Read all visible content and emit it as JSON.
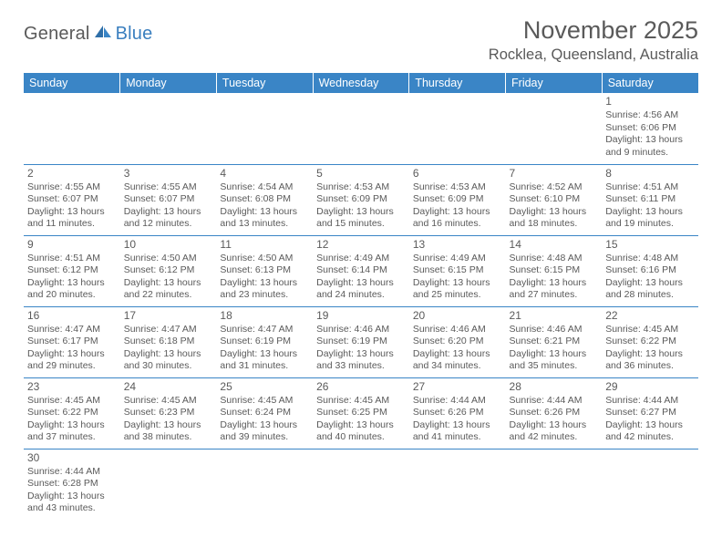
{
  "brand": {
    "part1": "General",
    "part2": "Blue"
  },
  "title": "November 2025",
  "location": "Rocklea, Queensland, Australia",
  "colors": {
    "header_bg": "#3a85c6",
    "header_text": "#ffffff",
    "grid_line": "#3a85c6",
    "body_text": "#5a5a5a",
    "brand_blue": "#3a7fbf",
    "page_bg": "#ffffff"
  },
  "weekdays": [
    "Sunday",
    "Monday",
    "Tuesday",
    "Wednesday",
    "Thursday",
    "Friday",
    "Saturday"
  ],
  "first_weekday_index": 6,
  "days": [
    {
      "n": 1,
      "sunrise": "4:56 AM",
      "sunset": "6:06 PM",
      "daylight": "13 hours and 9 minutes."
    },
    {
      "n": 2,
      "sunrise": "4:55 AM",
      "sunset": "6:07 PM",
      "daylight": "13 hours and 11 minutes."
    },
    {
      "n": 3,
      "sunrise": "4:55 AM",
      "sunset": "6:07 PM",
      "daylight": "13 hours and 12 minutes."
    },
    {
      "n": 4,
      "sunrise": "4:54 AM",
      "sunset": "6:08 PM",
      "daylight": "13 hours and 13 minutes."
    },
    {
      "n": 5,
      "sunrise": "4:53 AM",
      "sunset": "6:09 PM",
      "daylight": "13 hours and 15 minutes."
    },
    {
      "n": 6,
      "sunrise": "4:53 AM",
      "sunset": "6:09 PM",
      "daylight": "13 hours and 16 minutes."
    },
    {
      "n": 7,
      "sunrise": "4:52 AM",
      "sunset": "6:10 PM",
      "daylight": "13 hours and 18 minutes."
    },
    {
      "n": 8,
      "sunrise": "4:51 AM",
      "sunset": "6:11 PM",
      "daylight": "13 hours and 19 minutes."
    },
    {
      "n": 9,
      "sunrise": "4:51 AM",
      "sunset": "6:12 PM",
      "daylight": "13 hours and 20 minutes."
    },
    {
      "n": 10,
      "sunrise": "4:50 AM",
      "sunset": "6:12 PM",
      "daylight": "13 hours and 22 minutes."
    },
    {
      "n": 11,
      "sunrise": "4:50 AM",
      "sunset": "6:13 PM",
      "daylight": "13 hours and 23 minutes."
    },
    {
      "n": 12,
      "sunrise": "4:49 AM",
      "sunset": "6:14 PM",
      "daylight": "13 hours and 24 minutes."
    },
    {
      "n": 13,
      "sunrise": "4:49 AM",
      "sunset": "6:15 PM",
      "daylight": "13 hours and 25 minutes."
    },
    {
      "n": 14,
      "sunrise": "4:48 AM",
      "sunset": "6:15 PM",
      "daylight": "13 hours and 27 minutes."
    },
    {
      "n": 15,
      "sunrise": "4:48 AM",
      "sunset": "6:16 PM",
      "daylight": "13 hours and 28 minutes."
    },
    {
      "n": 16,
      "sunrise": "4:47 AM",
      "sunset": "6:17 PM",
      "daylight": "13 hours and 29 minutes."
    },
    {
      "n": 17,
      "sunrise": "4:47 AM",
      "sunset": "6:18 PM",
      "daylight": "13 hours and 30 minutes."
    },
    {
      "n": 18,
      "sunrise": "4:47 AM",
      "sunset": "6:19 PM",
      "daylight": "13 hours and 31 minutes."
    },
    {
      "n": 19,
      "sunrise": "4:46 AM",
      "sunset": "6:19 PM",
      "daylight": "13 hours and 33 minutes."
    },
    {
      "n": 20,
      "sunrise": "4:46 AM",
      "sunset": "6:20 PM",
      "daylight": "13 hours and 34 minutes."
    },
    {
      "n": 21,
      "sunrise": "4:46 AM",
      "sunset": "6:21 PM",
      "daylight": "13 hours and 35 minutes."
    },
    {
      "n": 22,
      "sunrise": "4:45 AM",
      "sunset": "6:22 PM",
      "daylight": "13 hours and 36 minutes."
    },
    {
      "n": 23,
      "sunrise": "4:45 AM",
      "sunset": "6:22 PM",
      "daylight": "13 hours and 37 minutes."
    },
    {
      "n": 24,
      "sunrise": "4:45 AM",
      "sunset": "6:23 PM",
      "daylight": "13 hours and 38 minutes."
    },
    {
      "n": 25,
      "sunrise": "4:45 AM",
      "sunset": "6:24 PM",
      "daylight": "13 hours and 39 minutes."
    },
    {
      "n": 26,
      "sunrise": "4:45 AM",
      "sunset": "6:25 PM",
      "daylight": "13 hours and 40 minutes."
    },
    {
      "n": 27,
      "sunrise": "4:44 AM",
      "sunset": "6:26 PM",
      "daylight": "13 hours and 41 minutes."
    },
    {
      "n": 28,
      "sunrise": "4:44 AM",
      "sunset": "6:26 PM",
      "daylight": "13 hours and 42 minutes."
    },
    {
      "n": 29,
      "sunrise": "4:44 AM",
      "sunset": "6:27 PM",
      "daylight": "13 hours and 42 minutes."
    },
    {
      "n": 30,
      "sunrise": "4:44 AM",
      "sunset": "6:28 PM",
      "daylight": "13 hours and 43 minutes."
    }
  ],
  "labels": {
    "sunrise": "Sunrise:",
    "sunset": "Sunset:",
    "daylight": "Daylight:"
  }
}
